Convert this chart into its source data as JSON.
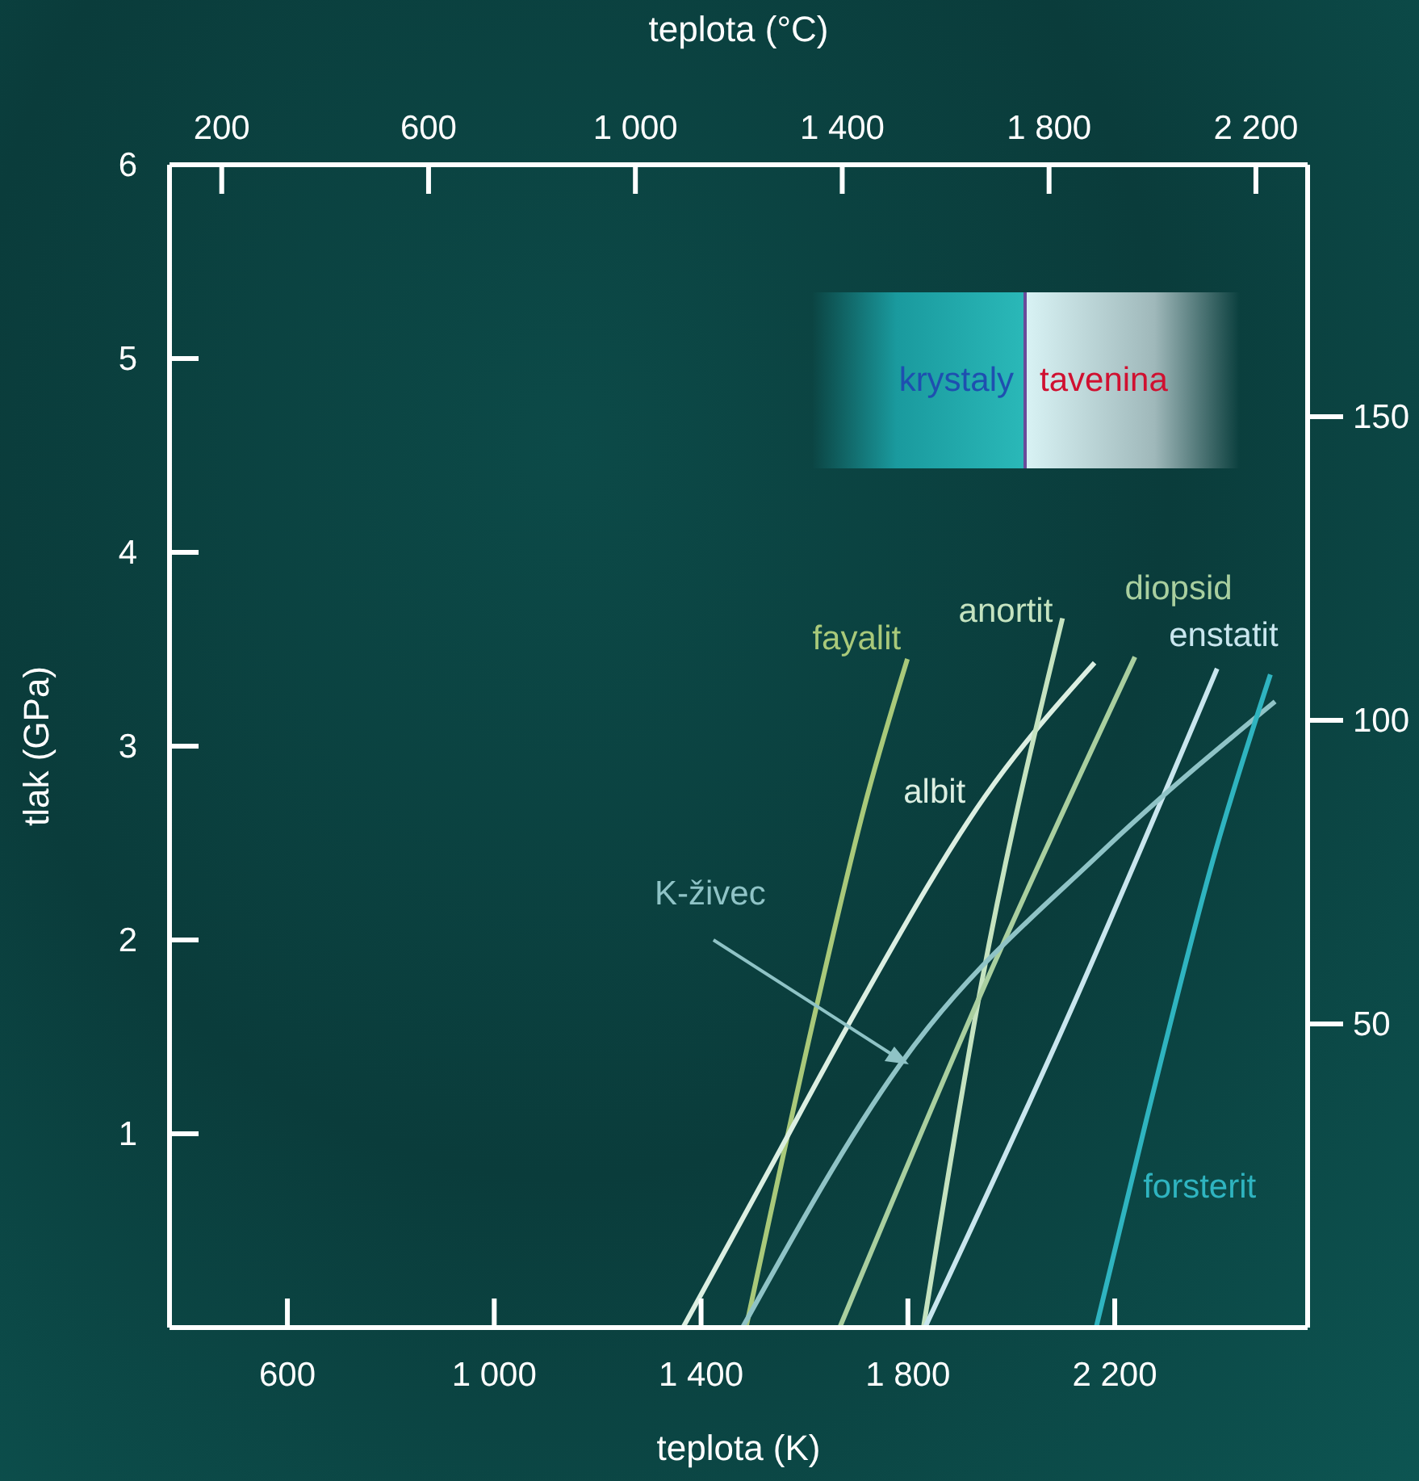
{
  "chart_data": {
    "type": "line",
    "xlabel": "teplota (K)",
    "x2label": "teplota (°C)",
    "ylabel": "tlak (GPa)",
    "xlim": [
      372,
      2573
    ],
    "xticks": [
      600,
      {
        "value": 1000,
        "label": "1 000"
      },
      {
        "value": 1400,
        "label": "1 400"
      },
      {
        "value": 1800,
        "label": "1 800"
      },
      {
        "value": 2200,
        "label": "2 200"
      }
    ],
    "x2lim": [
      99,
      2300
    ],
    "x2ticks": [
      200,
      600,
      {
        "value": 1000,
        "label": "1 000"
      },
      {
        "value": 1400,
        "label": "1 400"
      },
      {
        "value": 1800,
        "label": "1 800"
      },
      {
        "value": 2200,
        "label": "2 200"
      }
    ],
    "ylim": [
      0,
      6
    ],
    "yticks": [
      1,
      2,
      3,
      4,
      5,
      6
    ],
    "y2lim": [
      0,
      191.5
    ],
    "y2ticks": [
      50,
      100,
      150
    ],
    "marker": "none",
    "line_style": "solid",
    "annotations": [
      "krystaly",
      "tavenina"
    ],
    "series": [
      {
        "name": "fayalit",
        "color": "#a9c97a",
        "x": [
          1487,
          1621,
          1721,
          1799
        ],
        "values": [
          0,
          1.63,
          2.74,
          3.45
        ]
      },
      {
        "name": "albit",
        "color": "#dcefe2",
        "x": [
          1365,
          1527,
          1699,
          1949,
          2161
        ],
        "values": [
          0,
          0.79,
          1.63,
          2.74,
          3.43
        ]
      },
      {
        "name": "anortit",
        "color": "#c5e3c0",
        "x": [
          1830,
          1942,
          2099
        ],
        "values": [
          0,
          1.77,
          3.66
        ]
      },
      {
        "name": "diopsid",
        "color": "#a9cf9f",
        "x": [
          1668,
          1949,
          2239
        ],
        "values": [
          0,
          1.77,
          3.46
        ]
      },
      {
        "name": "enstatit",
        "color": "#c9e6ee",
        "x": [
          1833,
          2114,
          2398
        ],
        "values": [
          0,
          1.63,
          3.4
        ]
      },
      {
        "name": "K-živec",
        "color": "#8fc3c6",
        "x": [
          1480,
          1783,
          2177,
          2510
        ],
        "values": [
          0,
          1.35,
          2.46,
          3.23
        ]
      },
      {
        "name": "forsterit",
        "color": "#2fb4c0",
        "x": [
          2164,
          2261,
          2395,
          2501
        ],
        "values": [
          0,
          1.07,
          2.46,
          3.37
        ]
      }
    ]
  }
}
